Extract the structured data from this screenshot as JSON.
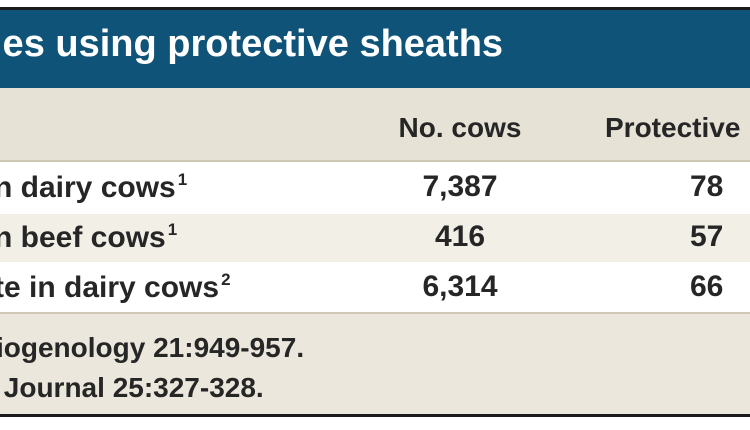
{
  "table": {
    "title": "ies using protective sheaths",
    "headers": {
      "label": "",
      "cows": "No. cows",
      "protective": "Protective"
    },
    "rows": [
      {
        "label": "n dairy cows",
        "sup": "1",
        "cows": "7,387",
        "protective": "78"
      },
      {
        "label": "n beef cows",
        "sup": "1",
        "cows": "416",
        "protective": "57"
      },
      {
        "label": "te in dairy cows",
        "sup": "2",
        "cows": "6,314",
        "protective": "66"
      }
    ],
    "footnotes": [
      "iogenology 21:949-957.",
      " Journal 25:327-328."
    ]
  },
  "colors": {
    "title_bg": "#0f5478",
    "header_bg": "#e6e2d6",
    "row_alt_bg": "#f2efe7",
    "footer_bg": "#ebe7dc"
  }
}
